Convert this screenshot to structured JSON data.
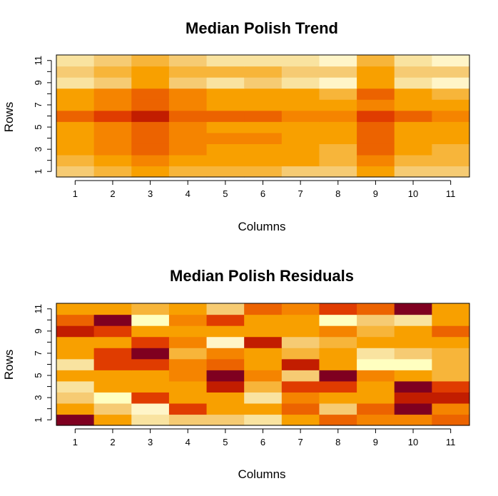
{
  "palette": {
    "1": "#7F0020",
    "2": "#C21D00",
    "3": "#E03C00",
    "4": "#EC6300",
    "5": "#F58400",
    "6": "#F8A000",
    "7": "#F7B53A",
    "8": "#F6CB73",
    "9": "#F9E3A0",
    "10": "#FFF5C8",
    "11": "#FFFFC0"
  },
  "chart_data": [
    {
      "type": "heatmap",
      "title": "Median Polish Trend",
      "xlabel": "Columns",
      "ylabel": "Rows",
      "columns": [
        "1",
        "2",
        "3",
        "4",
        "5",
        "6",
        "7",
        "8",
        "9",
        "10",
        "11"
      ],
      "rows": [
        "1",
        "2",
        "3",
        "4",
        "5",
        "6",
        "7",
        "8",
        "9",
        "10",
        "11"
      ],
      "x_ticks": [
        "1",
        "2",
        "3",
        "4",
        "5",
        "6",
        "7",
        "8",
        "9",
        "10",
        "11"
      ],
      "y_ticks": [
        "1",
        "3",
        "5",
        "7",
        "9",
        "11"
      ],
      "color_scale": "heat (1 = darkest red, 11 = palest yellow)",
      "values": [
        [
          8,
          7,
          6,
          7,
          7,
          7,
          8,
          8,
          6,
          8,
          8
        ],
        [
          7,
          6,
          5,
          6,
          6,
          6,
          6,
          7,
          5,
          7,
          7
        ],
        [
          6,
          5,
          4,
          5,
          6,
          6,
          6,
          7,
          4,
          6,
          7
        ],
        [
          6,
          5,
          4,
          5,
          5,
          5,
          6,
          6,
          4,
          6,
          6
        ],
        [
          6,
          5,
          4,
          5,
          6,
          6,
          6,
          6,
          4,
          6,
          6
        ],
        [
          4,
          3,
          2,
          4,
          4,
          4,
          5,
          5,
          3,
          4,
          5
        ],
        [
          6,
          5,
          4,
          5,
          6,
          6,
          6,
          6,
          5,
          6,
          6
        ],
        [
          6,
          5,
          4,
          5,
          6,
          6,
          6,
          7,
          4,
          6,
          7
        ],
        [
          9,
          8,
          6,
          8,
          9,
          8,
          9,
          10,
          6,
          9,
          10
        ],
        [
          8,
          7,
          6,
          7,
          7,
          7,
          8,
          8,
          6,
          8,
          8
        ],
        [
          9,
          8,
          7,
          8,
          9,
          9,
          9,
          10,
          7,
          9,
          10
        ]
      ]
    },
    {
      "type": "heatmap",
      "title": "Median Polish Residuals",
      "xlabel": "Columns",
      "ylabel": "Rows",
      "columns": [
        "1",
        "2",
        "3",
        "4",
        "5",
        "6",
        "7",
        "8",
        "9",
        "10",
        "11"
      ],
      "rows": [
        "1",
        "2",
        "3",
        "4",
        "5",
        "6",
        "7",
        "8",
        "9",
        "10",
        "11"
      ],
      "x_ticks": [
        "1",
        "2",
        "3",
        "4",
        "5",
        "6",
        "7",
        "8",
        "9",
        "10",
        "11"
      ],
      "y_ticks": [
        "1",
        "3",
        "5",
        "7",
        "9",
        "11"
      ],
      "color_scale": "heat (1 = darkest red, 11 = palest yellow)",
      "values": [
        [
          1,
          6,
          9,
          8,
          8,
          9,
          6,
          4,
          5,
          5,
          4
        ],
        [
          6,
          8,
          10,
          3,
          6,
          6,
          4,
          8,
          4,
          1,
          5
        ],
        [
          8,
          11,
          3,
          6,
          6,
          9,
          5,
          6,
          6,
          2,
          2
        ],
        [
          9,
          6,
          6,
          6,
          2,
          7,
          3,
          3,
          6,
          1,
          3
        ],
        [
          6,
          6,
          6,
          5,
          1,
          5,
          8,
          1,
          5,
          6,
          7
        ],
        [
          9,
          3,
          3,
          5,
          4,
          6,
          2,
          6,
          11,
          11,
          7
        ],
        [
          6,
          3,
          1,
          7,
          5,
          6,
          7,
          6,
          9,
          8,
          7
        ],
        [
          6,
          6,
          3,
          5,
          10,
          2,
          8,
          7,
          6,
          6,
          6
        ],
        [
          2,
          3,
          6,
          6,
          6,
          6,
          6,
          5,
          7,
          6,
          4
        ],
        [
          4,
          1,
          11,
          5,
          3,
          6,
          6,
          11,
          8,
          9,
          6
        ],
        [
          6,
          6,
          7,
          6,
          8,
          4,
          5,
          3,
          4,
          1,
          6
        ]
      ]
    }
  ]
}
